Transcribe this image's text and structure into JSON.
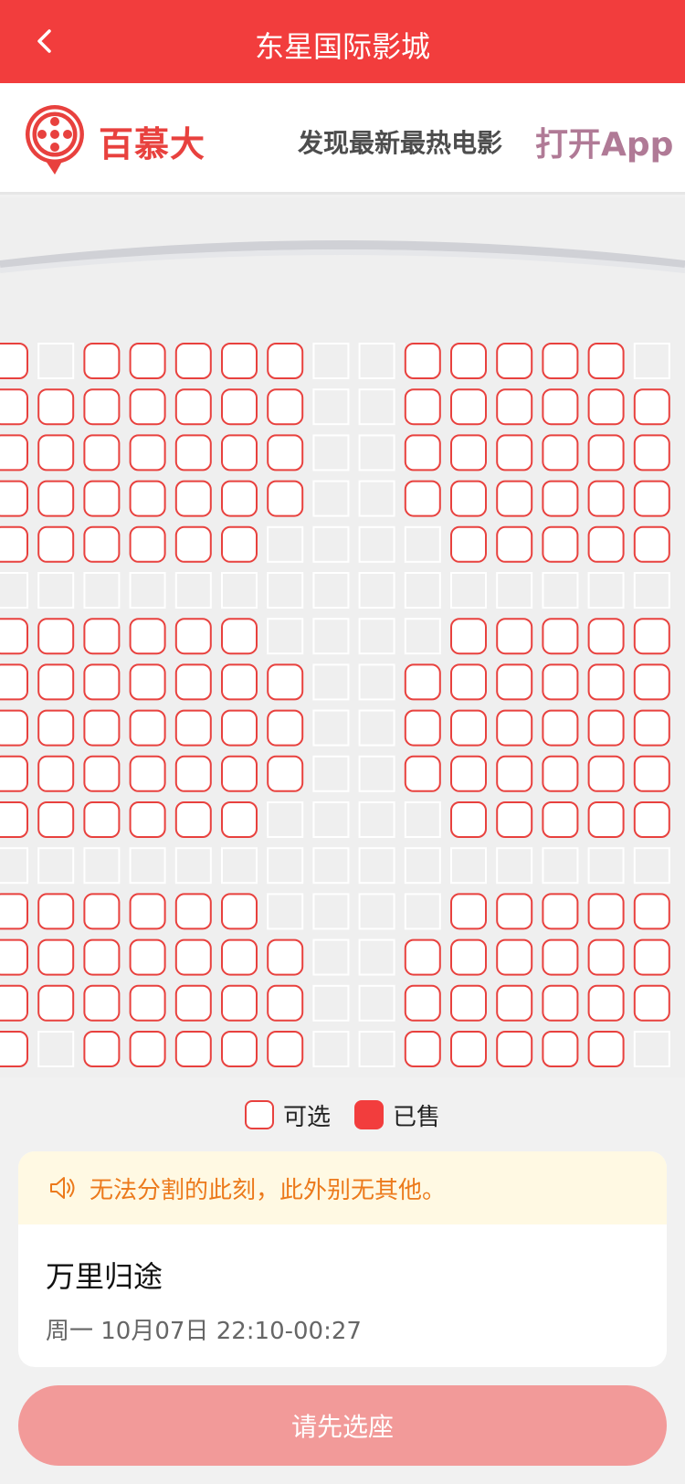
{
  "header": {
    "title": "东星国际影城",
    "back_icon": "chevron-left-icon"
  },
  "promo": {
    "brand": "百慕大",
    "slogan": "发现最新最热电影",
    "open_app_label": "打开App",
    "logo_icon": "film-reel-icon"
  },
  "seat_map": {
    "columns": 15,
    "rows": [
      "X.OOOOO..OOOOO.",
      "XOOOOOO..OOOOOO",
      "XOOOOOO..OOOOOO",
      "XOOOOOO..OOOOOO",
      "XOOOOO....OOOOO",
      "...............",
      "XOOOOO....OOOOO",
      "XOOOOOO..OOOOOO",
      "XOOOOOO..OOOOOO",
      "XOOOOOO..OOOOOO",
      "XOOOOO....OOOOO",
      "...............",
      "XOOOOO....OOOOO",
      "XOOOOOO..OOOOOO",
      "XOOOOOO..OOOOOO",
      "X.OOOOO..OOOOO."
    ],
    "colors": {
      "available_border": "#e8413e",
      "empty_border": "#ffffff",
      "sold": "#f23d3d"
    }
  },
  "legend": {
    "available_label": "可选",
    "sold_label": "已售"
  },
  "notice": {
    "text": "无法分割的此刻，此外别无其他。",
    "icon": "speaker-icon"
  },
  "movie": {
    "title": "万里归途",
    "showtime": "周一 10月07日 22:10-00:27"
  },
  "action": {
    "select_label": "请先选座"
  }
}
